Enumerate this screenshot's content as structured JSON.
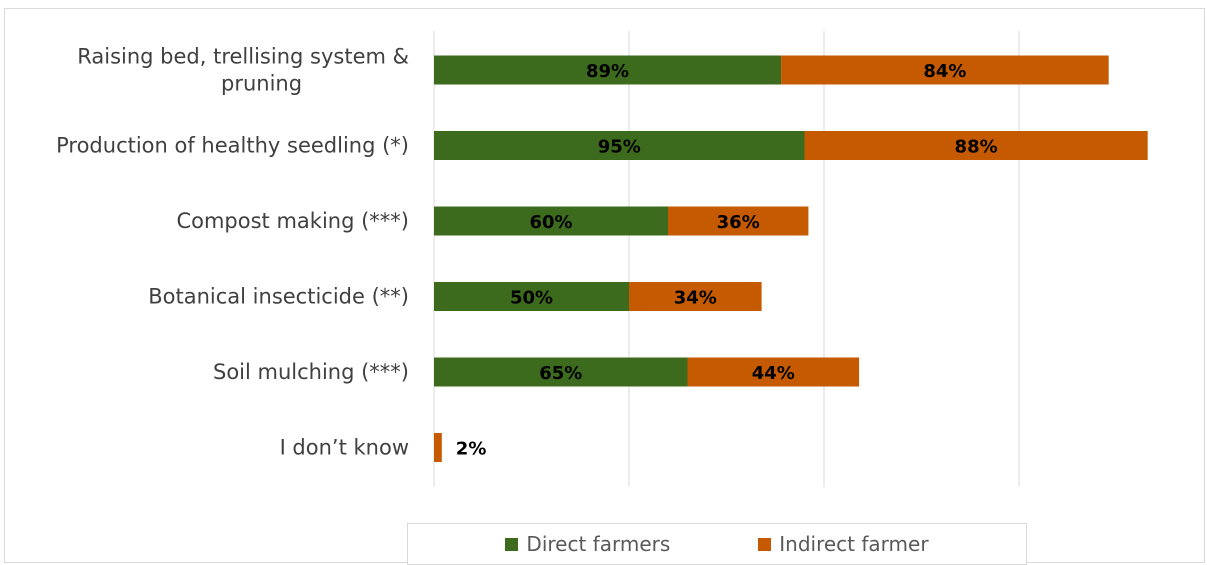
{
  "chart_data": {
    "type": "bar",
    "orientation": "horizontal",
    "stacked": true,
    "categories": [
      "Raising bed, trellising system & pruning",
      "Production of healthy seedling (*)",
      "Compost making (***)",
      "Botanical insecticide (**)",
      "Soil mulching (***)",
      "I don’t know"
    ],
    "category_lines": [
      [
        "Raising bed, trellising system &",
        "pruning"
      ],
      [
        "Production of healthy seedling (*)"
      ],
      [
        "Compost making (***)"
      ],
      [
        "Botanical insecticide (**)"
      ],
      [
        "Soil mulching (***)"
      ],
      [
        "I don’t know"
      ]
    ],
    "series": [
      {
        "name": "Direct farmers",
        "color": "#3d6b1e",
        "values": [
          89,
          95,
          60,
          50,
          65,
          0
        ],
        "labels": [
          "89%",
          "95%",
          "60%",
          "50%",
          "65%",
          ""
        ]
      },
      {
        "name": "Indirect farmer",
        "color": "#c55a00",
        "values": [
          84,
          88,
          36,
          34,
          44,
          2
        ],
        "labels": [
          "84%",
          "88%",
          "36%",
          "34%",
          "44%",
          "2%"
        ]
      }
    ],
    "xlim": [
      0,
      200
    ],
    "grid": "vertical",
    "legend_position": "bottom"
  }
}
